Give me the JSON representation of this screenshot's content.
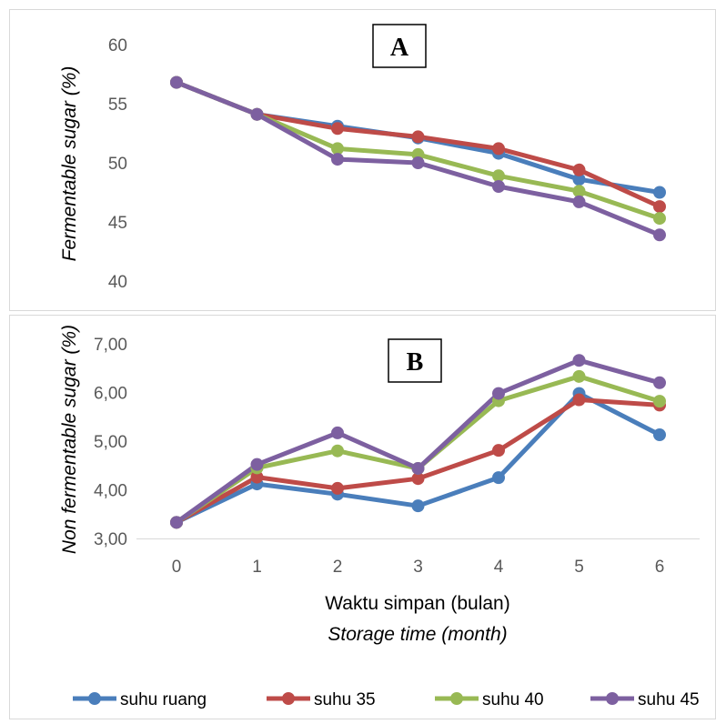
{
  "chart_data": [
    {
      "type": "line",
      "panel_label": "A",
      "ylabel": "Fermentable sugar (%)",
      "ylim": [
        40,
        60
      ],
      "y_ticks": [
        "40",
        "45",
        "50",
        "55",
        "60"
      ],
      "x": [
        0,
        1,
        2,
        3,
        4,
        5,
        6
      ],
      "grid": false,
      "series": [
        {
          "name": "suhu ruang",
          "color": "#4a7ebb",
          "values": [
            56.8,
            54.1,
            53.1,
            52.1,
            50.8,
            48.6,
            47.5
          ]
        },
        {
          "name": "suhu 35",
          "color": "#be4b48",
          "values": [
            56.8,
            54.1,
            52.9,
            52.2,
            51.2,
            49.4,
            46.3
          ]
        },
        {
          "name": "suhu 40",
          "color": "#98b954",
          "values": [
            56.8,
            54.1,
            51.2,
            50.7,
            48.9,
            47.6,
            45.3
          ]
        },
        {
          "name": "suhu 45",
          "color": "#7d60a0",
          "values": [
            56.8,
            54.1,
            50.3,
            50.0,
            48.0,
            46.7,
            43.9
          ]
        }
      ]
    },
    {
      "type": "line",
      "panel_label": "B",
      "ylabel": "Non fermentable sugar (%)",
      "xlabel": "Waktu simpan (bulan)",
      "xlabel2": "Storage time (month)",
      "ylim": [
        3.0,
        7.0
      ],
      "y_ticks": [
        "3,00",
        "4,00",
        "5,00",
        "6,00",
        "7,00"
      ],
      "x": [
        0,
        1,
        2,
        3,
        4,
        5,
        6
      ],
      "x_ticks": [
        "0",
        "1",
        "2",
        "3",
        "4",
        "5",
        "6"
      ],
      "grid": false,
      "legend_position": "bottom",
      "series": [
        {
          "name": "suhu ruang",
          "color": "#4a7ebb",
          "values": [
            3.33,
            4.12,
            3.91,
            3.67,
            4.25,
            5.98,
            5.13
          ]
        },
        {
          "name": "suhu 35",
          "color": "#be4b48",
          "values": [
            3.33,
            4.26,
            4.03,
            4.23,
            4.81,
            5.85,
            5.74
          ]
        },
        {
          "name": "suhu 40",
          "color": "#98b954",
          "values": [
            3.33,
            4.45,
            4.8,
            4.44,
            5.83,
            6.33,
            5.82
          ]
        },
        {
          "name": "suhu 45",
          "color": "#7d60a0",
          "values": [
            3.33,
            4.52,
            5.17,
            4.44,
            5.98,
            6.66,
            6.2
          ]
        }
      ]
    }
  ]
}
